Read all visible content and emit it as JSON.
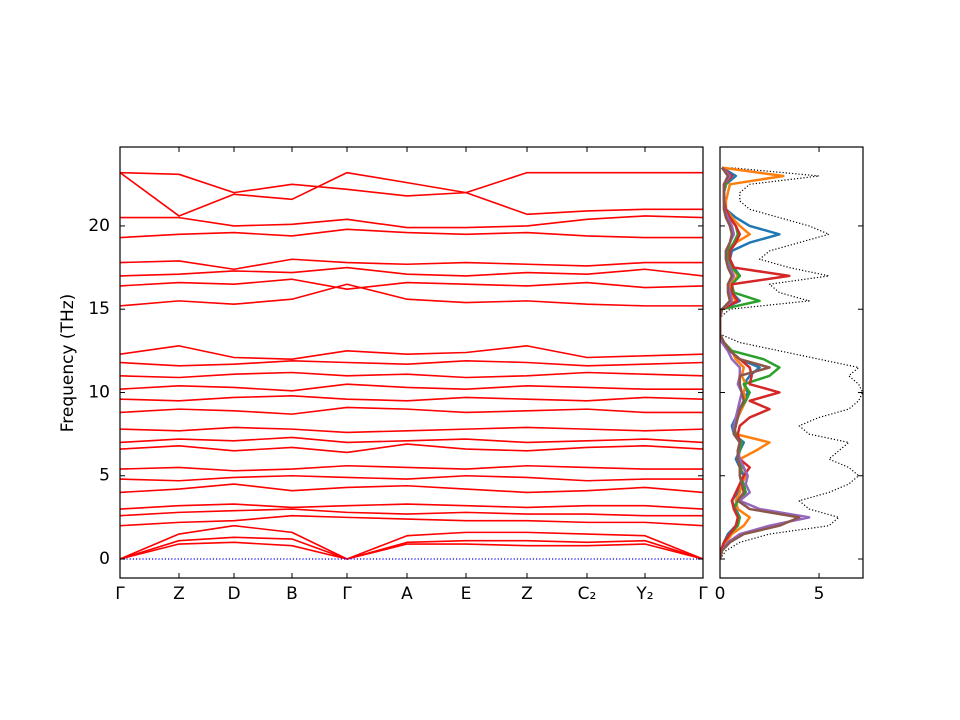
{
  "chart_data": [
    {
      "type": "line",
      "ylabel": "Frequency (THz)",
      "color": "#ff0000",
      "x": [
        0,
        0.59,
        1.14,
        1.72,
        2.27,
        2.87,
        3.46,
        4.07,
        4.67,
        5.25,
        5.83
      ],
      "xlim": [
        0,
        5.83
      ],
      "xticks": [
        {
          "value": 0,
          "label": "Γ"
        },
        {
          "value": 0.59,
          "label": "Z"
        },
        {
          "value": 1.14,
          "label": "D"
        },
        {
          "value": 1.72,
          "label": "B"
        },
        {
          "value": 2.27,
          "label": "Γ"
        },
        {
          "value": 2.87,
          "label": "A"
        },
        {
          "value": 3.46,
          "label": "E"
        },
        {
          "value": 4.07,
          "label": "Z"
        },
        {
          "value": 4.67,
          "label": "C₂"
        },
        {
          "value": 5.25,
          "label": "Y₂"
        },
        {
          "value": 5.83,
          "label": "Γ"
        }
      ],
      "ylim": [
        -1.14,
        24.74
      ],
      "yticks": [
        0,
        5,
        10,
        15,
        20
      ],
      "series": [
        {
          "values": [
            0,
            1.5,
            2.0,
            1.6,
            0,
            1.4,
            1.6,
            1.6,
            1.5,
            1.4,
            0
          ]
        },
        {
          "values": [
            0,
            1.1,
            1.3,
            1.2,
            0,
            1.0,
            1.1,
            1.1,
            1.0,
            1.1,
            0
          ]
        },
        {
          "values": [
            0,
            0.9,
            1.0,
            0.8,
            0,
            0.9,
            0.9,
            0.8,
            0.8,
            0.9,
            0
          ]
        },
        {
          "values": [
            2.0,
            2.2,
            2.3,
            2.6,
            2.5,
            2.4,
            2.3,
            2.3,
            2.2,
            2.2,
            2.0
          ]
        },
        {
          "values": [
            2.6,
            2.8,
            2.9,
            3.0,
            2.8,
            2.7,
            2.8,
            2.7,
            2.7,
            2.6,
            2.6
          ]
        },
        {
          "values": [
            3.0,
            3.2,
            3.3,
            3.1,
            3.2,
            3.3,
            3.2,
            3.1,
            3.2,
            3.2,
            3.0
          ]
        },
        {
          "values": [
            4.0,
            4.2,
            4.5,
            4.1,
            4.3,
            4.4,
            4.2,
            4.0,
            4.1,
            4.3,
            4.0
          ]
        },
        {
          "values": [
            4.8,
            4.7,
            4.9,
            5.0,
            4.9,
            4.8,
            5.0,
            4.9,
            4.7,
            4.8,
            4.8
          ]
        },
        {
          "values": [
            5.4,
            5.5,
            5.3,
            5.4,
            5.6,
            5.5,
            5.4,
            5.6,
            5.5,
            5.4,
            5.4
          ]
        },
        {
          "values": [
            6.6,
            6.8,
            6.5,
            6.7,
            6.4,
            6.9,
            6.6,
            6.5,
            6.7,
            6.8,
            6.6
          ]
        },
        {
          "values": [
            7.0,
            7.2,
            7.1,
            7.3,
            7.0,
            7.1,
            7.2,
            7.0,
            7.1,
            7.2,
            7.0
          ]
        },
        {
          "values": [
            7.8,
            7.7,
            7.9,
            7.8,
            7.6,
            7.7,
            7.8,
            7.9,
            7.8,
            7.7,
            7.8
          ]
        },
        {
          "values": [
            8.8,
            9.0,
            8.9,
            8.7,
            9.1,
            9.0,
            8.8,
            8.9,
            9.0,
            8.8,
            8.8
          ]
        },
        {
          "values": [
            9.6,
            9.5,
            9.7,
            9.8,
            9.6,
            9.5,
            9.7,
            9.6,
            9.5,
            9.7,
            9.6
          ]
        },
        {
          "values": [
            10.2,
            10.4,
            10.3,
            10.1,
            10.5,
            10.3,
            10.2,
            10.4,
            10.3,
            10.2,
            10.2
          ]
        },
        {
          "values": [
            11.0,
            10.9,
            11.1,
            11.2,
            11.0,
            11.1,
            10.9,
            11.0,
            11.2,
            11.1,
            11.0
          ]
        },
        {
          "values": [
            11.8,
            11.6,
            11.7,
            11.9,
            11.8,
            11.7,
            11.9,
            11.8,
            11.6,
            11.7,
            11.8
          ]
        },
        {
          "values": [
            12.3,
            12.8,
            12.1,
            12.0,
            12.5,
            12.3,
            12.4,
            12.8,
            12.1,
            12.2,
            12.3
          ]
        },
        {
          "values": [
            15.2,
            15.5,
            15.3,
            15.6,
            16.5,
            15.6,
            15.4,
            15.5,
            15.3,
            15.2,
            15.2
          ]
        },
        {
          "values": [
            16.4,
            16.6,
            16.5,
            16.8,
            16.2,
            16.6,
            16.5,
            16.4,
            16.6,
            16.3,
            16.4
          ]
        },
        {
          "values": [
            17.0,
            17.1,
            17.3,
            17.2,
            17.5,
            17.1,
            17.0,
            17.2,
            17.1,
            17.4,
            17.0
          ]
        },
        {
          "values": [
            17.8,
            17.9,
            17.4,
            18.0,
            17.8,
            17.7,
            17.8,
            17.7,
            17.6,
            17.8,
            17.8
          ]
        },
        {
          "values": [
            19.3,
            19.5,
            19.6,
            19.4,
            19.8,
            19.6,
            19.5,
            19.6,
            19.4,
            19.3,
            19.3
          ]
        },
        {
          "values": [
            20.5,
            20.5,
            20.0,
            20.1,
            20.4,
            19.9,
            19.9,
            20.0,
            20.4,
            20.6,
            20.5
          ]
        },
        {
          "values": [
            23.2,
            23.1,
            22.0,
            22.5,
            22.2,
            21.8,
            22.0,
            23.2,
            23.2,
            23.2,
            23.2
          ]
        },
        {
          "values": [
            23.2,
            20.6,
            21.9,
            21.6,
            23.2,
            22.6,
            22.0,
            20.7,
            20.9,
            21.0,
            21.0
          ]
        },
        {
          "color": "#0000ff",
          "style": "dotted",
          "values": [
            0,
            0,
            0,
            0,
            0,
            0,
            0,
            0,
            0,
            0,
            0
          ]
        }
      ]
    },
    {
      "type": "line",
      "orientation": "horizontal",
      "y": [
        0,
        0.5,
        1,
        1.5,
        2,
        2.5,
        3,
        3.5,
        4,
        4.5,
        5,
        5.5,
        6,
        6.5,
        7,
        7.5,
        8,
        8.5,
        9,
        9.5,
        10,
        10.5,
        11,
        11.5,
        12,
        12.5,
        13,
        13.5,
        14,
        14.5,
        15,
        15.5,
        16,
        16.5,
        17,
        17.5,
        18,
        18.5,
        19,
        19.5,
        20,
        20.5,
        21,
        21.5,
        22,
        22.5,
        23,
        23.5
      ],
      "xlim": [
        0,
        7.22
      ],
      "xticks": [
        0,
        5
      ],
      "ylim": [
        -1.14,
        24.74
      ],
      "yticks": [
        0,
        5,
        10,
        15,
        20
      ],
      "series": [
        {
          "color": "#000000",
          "style": "dotted",
          "values": [
            0,
            0.3,
            1.0,
            2.5,
            5.5,
            6.0,
            4.5,
            4.0,
            5.5,
            6.5,
            7.0,
            6.5,
            5.5,
            6.0,
            6.5,
            4.5,
            4.0,
            5.0,
            6.5,
            7.0,
            7.2,
            7.0,
            6.5,
            7.0,
            5.0,
            3.0,
            1.0,
            0,
            0,
            0,
            0.5,
            4.5,
            3.0,
            2.5,
            5.5,
            3.5,
            2.0,
            2.5,
            4.0,
            5.5,
            4.5,
            3.0,
            1.5,
            1.0,
            1.0,
            1.5,
            5.0,
            0.5
          ]
        },
        {
          "color": "#1f77b4",
          "values": [
            0,
            0.05,
            0.2,
            0.4,
            0.8,
            1.0,
            0.8,
            0.6,
            0.9,
            1.0,
            1.2,
            1.0,
            0.8,
            1.0,
            1.2,
            0.7,
            0.6,
            0.8,
            1.0,
            1.2,
            1.4,
            1.2,
            1.5,
            2.0,
            1.0,
            0.5,
            0.2,
            0,
            0,
            0,
            0.1,
            1.0,
            0.6,
            0.5,
            1.0,
            0.7,
            0.5,
            0.6,
            1.5,
            3.0,
            1.5,
            0.8,
            0.3,
            0.2,
            0.2,
            0.3,
            0.8,
            0.1
          ]
        },
        {
          "color": "#ff7f0e",
          "values": [
            0,
            0.1,
            0.3,
            0.6,
            1.2,
            1.5,
            0.9,
            0.8,
            1.0,
            1.1,
            1.3,
            1.2,
            1.0,
            1.8,
            2.5,
            0.8,
            0.7,
            0.9,
            1.1,
            1.3,
            1.2,
            1.3,
            1.1,
            1.2,
            0.8,
            0.6,
            0.2,
            0,
            0,
            0,
            0.1,
            0.8,
            0.5,
            0.5,
            0.9,
            0.6,
            0.4,
            0.5,
            0.8,
            1.5,
            1.0,
            0.6,
            0.3,
            0.3,
            0.4,
            0.5,
            3.2,
            0.1
          ]
        },
        {
          "color": "#2ca02c",
          "values": [
            0,
            0.05,
            0.2,
            0.5,
            0.9,
            1.0,
            0.7,
            0.9,
            1.3,
            1.2,
            1.0,
            1.1,
            0.9,
            1.0,
            1.1,
            0.8,
            0.7,
            0.9,
            1.0,
            1.3,
            1.5,
            1.2,
            2.5,
            3.0,
            2.2,
            0.6,
            0.2,
            0,
            0,
            0,
            0.1,
            2.0,
            0.7,
            0.6,
            1.0,
            0.6,
            0.4,
            0.4,
            0.7,
            0.9,
            0.8,
            0.5,
            0.3,
            0.2,
            0.2,
            0.3,
            0.6,
            0.1
          ]
        },
        {
          "color": "#d62728",
          "values": [
            0,
            0.05,
            0.2,
            0.5,
            0.8,
            0.9,
            0.7,
            0.6,
            0.8,
            1.0,
            1.2,
            1.5,
            1.0,
            0.9,
            1.0,
            0.9,
            1.0,
            1.5,
            2.5,
            1.5,
            3.0,
            1.5,
            1.6,
            1.5,
            1.0,
            0.5,
            0.2,
            0,
            0,
            0,
            0.1,
            0.9,
            0.6,
            0.6,
            3.5,
            0.7,
            0.5,
            0.5,
            0.8,
            1.0,
            0.8,
            0.5,
            0.3,
            0.2,
            0.2,
            0.2,
            0.6,
            0.1
          ]
        },
        {
          "color": "#9467bd",
          "values": [
            0,
            0.1,
            0.4,
            1.0,
            2.5,
            4.5,
            2.0,
            1.0,
            1.5,
            1.3,
            1.4,
            1.2,
            1.0,
            0.9,
            1.0,
            0.7,
            0.7,
            0.8,
            0.9,
            1.0,
            1.1,
            0.9,
            1.0,
            1.0,
            0.6,
            0.4,
            0.1,
            0,
            0,
            0,
            0.1,
            0.6,
            0.5,
            0.4,
            0.7,
            0.5,
            0.3,
            0.3,
            0.5,
            0.7,
            0.6,
            0.4,
            0.2,
            0.2,
            0.2,
            0.2,
            0.5,
            0.1
          ]
        },
        {
          "color": "#8c564b",
          "values": [
            0,
            0.1,
            0.5,
            1.2,
            3.0,
            4.0,
            1.5,
            0.9,
            1.2,
            1.1,
            1.0,
            1.0,
            0.9,
            0.9,
            1.0,
            0.7,
            0.8,
            0.9,
            1.0,
            1.2,
            1.1,
            1.0,
            1.0,
            2.5,
            1.0,
            0.5,
            0.2,
            0,
            0,
            0,
            0.1,
            0.5,
            0.4,
            0.4,
            0.6,
            0.4,
            0.3,
            0.3,
            0.5,
            0.6,
            0.5,
            0.3,
            0.2,
            0.2,
            0.2,
            0.2,
            0.4,
            0.1
          ]
        }
      ]
    }
  ]
}
